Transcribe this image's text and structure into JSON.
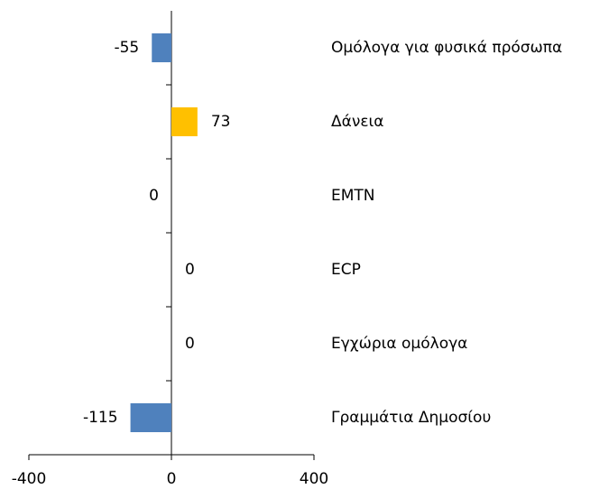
{
  "chart_data": {
    "type": "hbar",
    "categories": [
      "Ομόλογα για φυσικά πρόσωπα",
      "Δάνεια",
      "EMTN",
      "ECP",
      "Εγχώρια ομόλογα",
      "Γραμμάτια Δημοσίου"
    ],
    "values": [
      -55,
      73,
      0,
      0,
      0,
      -115
    ],
    "colors": [
      "#4f81bd",
      "#ffc000",
      "#4f81bd",
      "#4f81bd",
      "#4f81bd",
      "#4f81bd"
    ],
    "label_positions": [
      "left",
      "right",
      "left",
      "right",
      "right",
      "left"
    ],
    "xlim": [
      -400,
      400
    ],
    "xticks": [
      -400,
      0,
      400
    ],
    "grid": false
  }
}
